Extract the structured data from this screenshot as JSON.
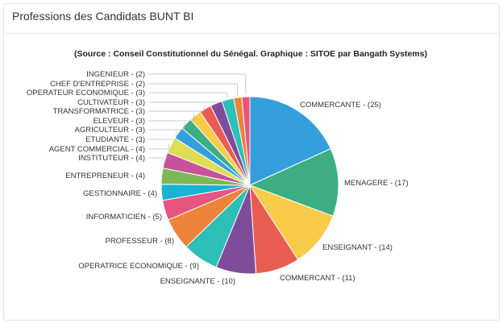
{
  "card": {
    "title": "Professions des Candidats BUNT BI"
  },
  "chart_data": {
    "type": "pie",
    "title": "",
    "subtitle": "(Source : Conseil Constitutionnel du Sénégal. Graphique : SITOE par Bangath Systems)",
    "label_format": "{name} - ({value})",
    "slices": [
      {
        "name": "COMMERCANTE",
        "value": 25,
        "color": "#339fdd"
      },
      {
        "name": "MENAGERE",
        "value": 17,
        "color": "#3dae83"
      },
      {
        "name": "ENSEIGNANT",
        "value": 14,
        "color": "#f8cb48"
      },
      {
        "name": "COMMERCANT",
        "value": 11,
        "color": "#e85c52"
      },
      {
        "name": "ENSEIGNANTE",
        "value": 10,
        "color": "#7f4c9a"
      },
      {
        "name": "OPERATRICE ECONOMIQUE",
        "value": 9,
        "color": "#2ebfb7"
      },
      {
        "name": "PROFESSEUR",
        "value": 8,
        "color": "#ee833a"
      },
      {
        "name": "INFORMATICIEN",
        "value": 5,
        "color": "#e6557f"
      },
      {
        "name": "GESTIONNAIRE",
        "value": 4,
        "color": "#16b3d3"
      },
      {
        "name": "ENTREPRENEUR",
        "value": 4,
        "color": "#7cb956"
      },
      {
        "name": "INSTITUTEUR",
        "value": 4,
        "color": "#c8529a"
      },
      {
        "name": "AGENT COMMERCIAL",
        "value": 4,
        "color": "#dede55"
      },
      {
        "name": "ETUDIANTE",
        "value": 3,
        "color": "#339fdd"
      },
      {
        "name": "AGRICULTEUR",
        "value": 3,
        "color": "#3dae83"
      },
      {
        "name": "ELEVEUR",
        "value": 3,
        "color": "#f8cb48"
      },
      {
        "name": "TRANSFORMATRICE",
        "value": 3,
        "color": "#e85c52"
      },
      {
        "name": "CULTIVATEUR",
        "value": 3,
        "color": "#7f4c9a"
      },
      {
        "name": "OPERATEUR ECONOMIQUE",
        "value": 3,
        "color": "#2ebfb7"
      },
      {
        "name": "CHEF D'ENTREPRISE",
        "value": 2,
        "color": "#ee833a"
      },
      {
        "name": "INGENIEUR",
        "value": 2,
        "color": "#e6557f"
      }
    ]
  }
}
